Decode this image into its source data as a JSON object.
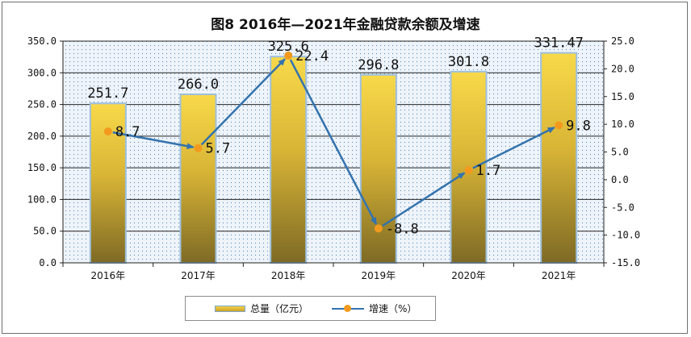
{
  "chart_data": {
    "type": "bar+line",
    "title": "图8   2016年—2021年金融贷款余额及增速",
    "categories": [
      "2016年",
      "2017年",
      "2018年",
      "2019年",
      "2020年",
      "2021年"
    ],
    "series": [
      {
        "name": "总量（亿元）",
        "type": "bar",
        "axis": "left",
        "values": [
          251.7,
          266.0,
          325.6,
          296.8,
          301.8,
          331.47
        ],
        "labels": [
          "251.7",
          "266.0",
          "325.6",
          "296.8",
          "301.8",
          "331.47"
        ]
      },
      {
        "name": "增速（%）",
        "type": "line",
        "axis": "right",
        "values": [
          8.7,
          5.7,
          22.4,
          -8.8,
          1.7,
          9.8
        ],
        "labels": [
          "8.7",
          "5.7",
          "22.4",
          "-8.8",
          "1.7",
          "9.8"
        ]
      }
    ],
    "y_left": {
      "range": [
        0,
        350
      ],
      "ticks": [
        "0.0",
        "50.0",
        "100.0",
        "150.0",
        "200.0",
        "250.0",
        "300.0",
        "350.0"
      ]
    },
    "y_right": {
      "range": [
        -15,
        25
      ],
      "ticks": [
        "-15.0",
        "-10.0",
        "-5.0",
        "0.0",
        "5.0",
        "10.0",
        "15.0",
        "20.0",
        "25.0"
      ]
    },
    "grid": true,
    "legend_position": "bottom-center",
    "colors": {
      "bar_top": "#f8d94a",
      "bar_bottom": "#7e6a25",
      "bar_border": "#9ec0dc",
      "line": "#3473ad",
      "marker": "#f39a1e",
      "plot_dots": "#4f7fb5"
    }
  }
}
